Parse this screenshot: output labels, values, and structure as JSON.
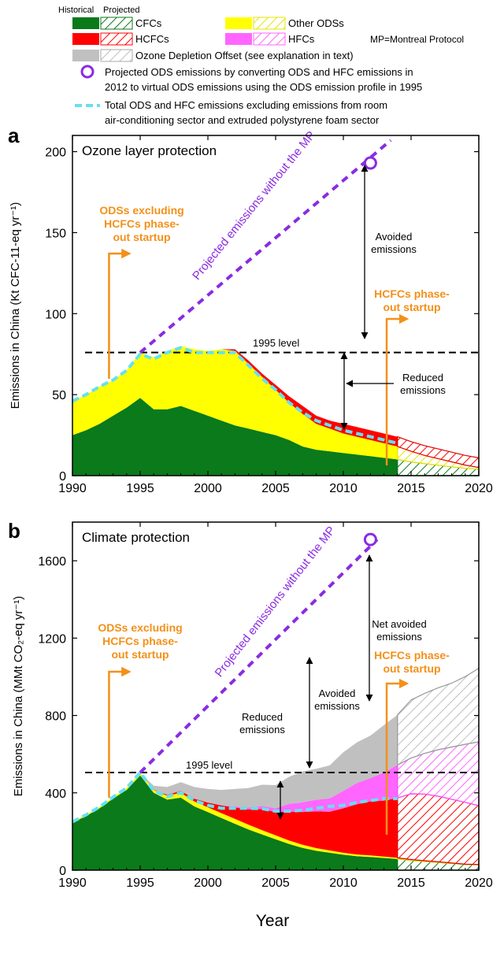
{
  "legend": {
    "header_historical": "Historical",
    "header_projected": "Projected",
    "cfcs": "CFCs",
    "hcfcs": "HCFCs",
    "other_odss": "Other ODSs",
    "hfcs": "HFCs",
    "offset": "Ozone Depletion Offset (see explanation in text)",
    "mp_note": "MP=Montreal Protocol",
    "projected_line1": "Projected ODS emissions by converting ODS and HFC emissions in",
    "projected_line2": "2012 to virtual ODS emissions using the ODS emission profile in 1995",
    "total_line1": "Total ODS and HFC emissions excluding emissions from room",
    "total_line2": "air-conditioning sector and extruded polystyrene foam sector"
  },
  "colors": {
    "cfc": "#0a7a1a",
    "hcfc": "#ff0000",
    "other": "#ffff00",
    "hfc": "#ff66ff",
    "offset": "#c0c0c0",
    "projected": "#8a2be2",
    "total": "#66e0f0",
    "annotation_orange": "#f39019"
  },
  "x_axis_label": "Year",
  "chart_data": [
    {
      "panel": "a",
      "type": "area",
      "title": "Ozone layer protection",
      "ylabel": "Emissions in China (Kt CFC-11-eq yr⁻¹)",
      "xlim": [
        1990,
        2020
      ],
      "ylim": [
        0,
        210
      ],
      "xticks": [
        1990,
        1995,
        2000,
        2005,
        2010,
        2015,
        2020
      ],
      "yticks": [
        0,
        50,
        100,
        150,
        200
      ],
      "projection_start": 2014,
      "x": [
        1990,
        1991,
        1992,
        1993,
        1994,
        1995,
        1996,
        1997,
        1998,
        1999,
        2000,
        2001,
        2002,
        2003,
        2004,
        2005,
        2006,
        2007,
        2008,
        2009,
        2010,
        2011,
        2012,
        2013,
        2014,
        2015,
        2016,
        2017,
        2018,
        2019,
        2020
      ],
      "series": [
        {
          "name": "CFCs",
          "values": [
            25,
            28,
            32,
            37,
            42,
            48,
            41,
            41,
            43,
            40,
            37,
            34,
            31,
            29,
            27,
            25,
            22,
            18,
            16,
            15,
            14,
            13,
            12,
            11,
            10,
            8.5,
            7.5,
            6.5,
            5.5,
            4.5,
            4
          ]
        },
        {
          "name": "Other ODSs",
          "values": [
            21,
            22,
            23,
            22,
            23,
            28,
            32,
            36,
            37,
            38,
            40,
            44,
            46,
            40,
            34,
            28,
            23,
            20,
            16,
            14,
            12,
            11,
            10,
            9,
            8,
            6.5,
            5,
            4,
            3,
            2,
            1
          ]
        },
        {
          "name": "HCFCs",
          "values": [
            0,
            0,
            0,
            0,
            0,
            0,
            0,
            0,
            0,
            0,
            0,
            0,
            1,
            2,
            2,
            3,
            4,
            5,
            5,
            5,
            6,
            6,
            6,
            6,
            6,
            6,
            6,
            6,
            6,
            6,
            6
          ]
        }
      ],
      "total_excl": [
        46,
        50,
        55,
        59,
        65,
        75,
        72,
        76,
        79,
        76,
        76,
        76,
        76,
        68,
        60,
        53,
        45,
        39,
        34,
        31,
        28,
        26,
        24,
        22,
        20,
        18,
        16,
        14,
        12,
        10,
        9
      ],
      "projected_line": {
        "x": [
          1995,
          2013.5
        ],
        "y": [
          76,
          207
        ]
      },
      "projected_marker": {
        "x": 2012,
        "y": 193
      },
      "level_1995": {
        "label": "1995 level",
        "value": 76
      },
      "annotations": [
        {
          "text_lines": [
            "ODSs excluding",
            "HCFCs phase-",
            "out startup"
          ],
          "year": 1992.7,
          "color": "orange"
        },
        {
          "text_lines": [
            "HCFCs phase-",
            "out startup"
          ],
          "year": 2013.2,
          "color": "orange"
        },
        {
          "text_lines": [
            "Avoided",
            "emissions"
          ]
        },
        {
          "text_lines": [
            "Reduced",
            "emissions"
          ]
        },
        {
          "text_lines": [
            "Projected emissions without the MP"
          ]
        }
      ]
    },
    {
      "panel": "b",
      "type": "area",
      "title": "Climate protection",
      "ylabel": "Emissions in China (MMt CO₂-eq yr⁻¹)",
      "xlim": [
        1990,
        2020
      ],
      "ylim": [
        0,
        1800
      ],
      "xticks": [
        1990,
        1995,
        2000,
        2005,
        2010,
        2015,
        2020
      ],
      "yticks": [
        0,
        400,
        800,
        1200,
        1600
      ],
      "projection_start": 2014,
      "x": [
        1990,
        1991,
        1992,
        1993,
        1994,
        1995,
        1996,
        1997,
        1998,
        1999,
        2000,
        2001,
        2002,
        2003,
        2004,
        2005,
        2006,
        2007,
        2008,
        2009,
        2010,
        2011,
        2012,
        2013,
        2014,
        2015,
        2016,
        2017,
        2018,
        2019,
        2020
      ],
      "series": [
        {
          "name": "CFCs",
          "values": [
            245,
            280,
            320,
            370,
            415,
            490,
            400,
            365,
            375,
            330,
            300,
            270,
            240,
            210,
            185,
            160,
            135,
            115,
            100,
            90,
            80,
            72,
            68,
            63,
            58,
            50,
            45,
            40,
            35,
            30,
            28
          ]
        },
        {
          "name": "Other ODSs",
          "values": [
            5,
            6,
            7,
            8,
            10,
            12,
            15,
            20,
            25,
            25,
            25,
            25,
            25,
            25,
            22,
            20,
            18,
            16,
            14,
            12,
            10,
            9,
            8,
            7,
            6,
            5,
            4,
            3,
            2,
            1,
            1
          ]
        },
        {
          "name": "HCFCs",
          "values": [
            0,
            0,
            0,
            0,
            0,
            0,
            2,
            5,
            10,
            15,
            25,
            40,
            60,
            80,
            110,
            120,
            150,
            170,
            190,
            200,
            230,
            260,
            280,
            290,
            310,
            340,
            345,
            340,
            330,
            320,
            305
          ]
        },
        {
          "name": "HFCs",
          "values": [
            0,
            0,
            0,
            0,
            0,
            0,
            0,
            0,
            0,
            0,
            0,
            0,
            5,
            10,
            15,
            20,
            40,
            50,
            60,
            70,
            90,
            110,
            120,
            145,
            170,
            185,
            210,
            240,
            270,
            300,
            330
          ]
        },
        {
          "name": "Ozone Depletion Offset",
          "values": [
            0,
            0,
            0,
            0,
            0,
            0,
            20,
            40,
            45,
            60,
            70,
            80,
            90,
            100,
            110,
            120,
            140,
            160,
            160,
            170,
            200,
            210,
            220,
            245,
            260,
            300,
            310,
            320,
            330,
            350,
            380
          ]
        }
      ],
      "total_excl": [
        250,
        286,
        327,
        378,
        425,
        505,
        410,
        380,
        400,
        360,
        335,
        320,
        320,
        320,
        318,
        305,
        305,
        310,
        320,
        330,
        335,
        350,
        360,
        370,
        370,
        375,
        370,
        365,
        355,
        345,
        335
      ],
      "projected_line": {
        "x": [
          1995,
          2012.5
        ],
        "y": [
          505,
          1710
        ]
      },
      "projected_marker": {
        "x": 2012,
        "y": 1710
      },
      "level_1995": {
        "label": "1995 level",
        "value": 505
      },
      "annotations": [
        {
          "text_lines": [
            "ODSs excluding",
            "HCFCs phase-",
            "out startup"
          ],
          "year": 1992.7,
          "color": "orange"
        },
        {
          "text_lines": [
            "HCFCs phase-",
            "out startup"
          ],
          "year": 2013.2,
          "color": "orange"
        },
        {
          "text_lines": [
            "Net avoided",
            "emissions"
          ]
        },
        {
          "text_lines": [
            "Avoided",
            "emissions"
          ]
        },
        {
          "text_lines": [
            "Reduced",
            "emissions"
          ]
        },
        {
          "text_lines": [
            "Projected emissions without the MP"
          ]
        }
      ]
    }
  ]
}
